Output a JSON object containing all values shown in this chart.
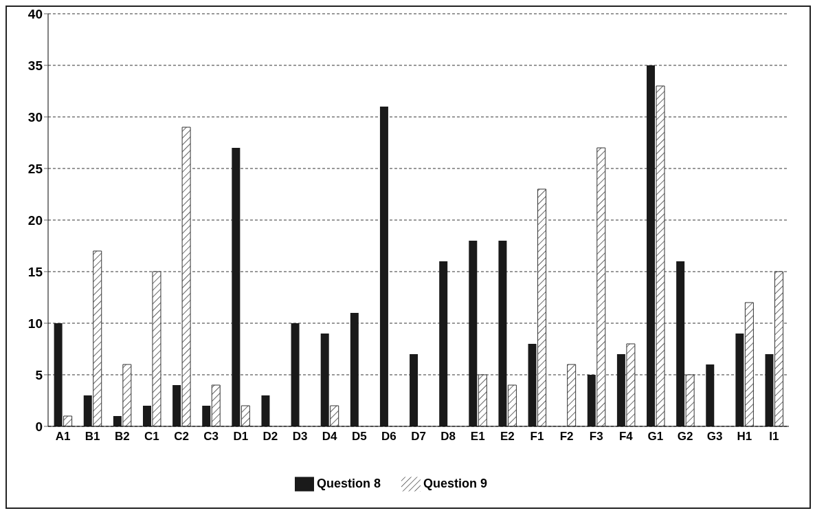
{
  "chart_data": {
    "type": "bar",
    "categories": [
      "A1",
      "B1",
      "B2",
      "C1",
      "C2",
      "C3",
      "D1",
      "D2",
      "D3",
      "D4",
      "D5",
      "D6",
      "D7",
      "D8",
      "E1",
      "E2",
      "F1",
      "F2",
      "F3",
      "F4",
      "G1",
      "G2",
      "G3",
      "H1",
      "I1"
    ],
    "series": [
      {
        "name": "Question 8",
        "color": "#1a1a1a",
        "values": [
          10,
          3,
          1,
          2,
          4,
          2,
          27,
          3,
          10,
          9,
          11,
          31,
          7,
          16,
          18,
          18,
          8,
          0,
          5,
          7,
          35,
          16,
          6,
          9,
          7
        ]
      },
      {
        "name": "Question 9",
        "color": "#333333",
        "values": [
          1,
          17,
          6,
          15,
          29,
          4,
          2,
          0,
          0,
          2,
          0,
          0,
          0,
          0,
          5,
          4,
          23,
          6,
          27,
          8,
          33,
          5,
          0,
          12,
          15
        ]
      }
    ],
    "ylim": [
      0,
      40
    ],
    "yticks": [
      0,
      5,
      10,
      15,
      20,
      25,
      30,
      35,
      40
    ],
    "grid": "y",
    "legend": "bottom"
  }
}
